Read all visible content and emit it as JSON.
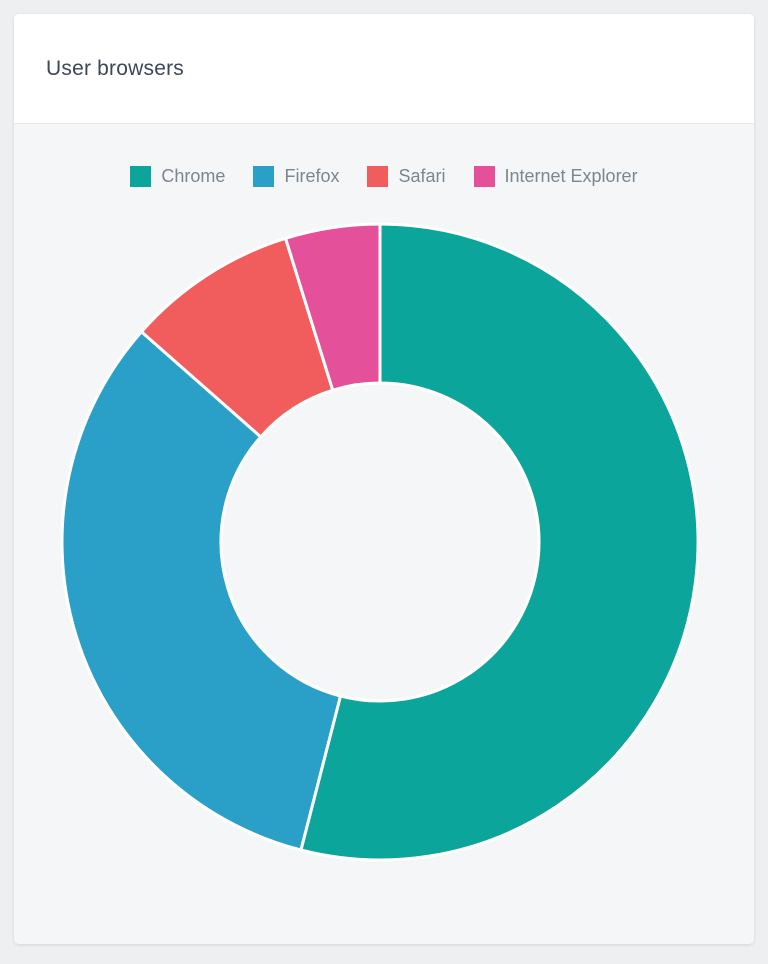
{
  "page": {
    "background": "#edeff1"
  },
  "card": {
    "title": "User browsers",
    "header_bg": "#ffffff",
    "body_bg": "#f5f6f8",
    "title_color": "#3c4858",
    "divider_color": "#e7e9ec"
  },
  "chart_data": {
    "type": "pie",
    "subtype": "donut",
    "title": "User browsers",
    "categories": [
      "Chrome",
      "Firefox",
      "Safari",
      "Internet Explorer"
    ],
    "values": [
      54,
      32.5,
      8.7,
      4.8
    ],
    "colors": [
      "#0ca59b",
      "#2a9fc8",
      "#f15c5c",
      "#e4509a"
    ],
    "legend_position": "top",
    "legend_text_color": "#7b8691",
    "start_angle_deg": 0,
    "direction": "clockwise",
    "inner_radius_ratio": 0.5,
    "slice_gap_color": "#ffffff"
  }
}
